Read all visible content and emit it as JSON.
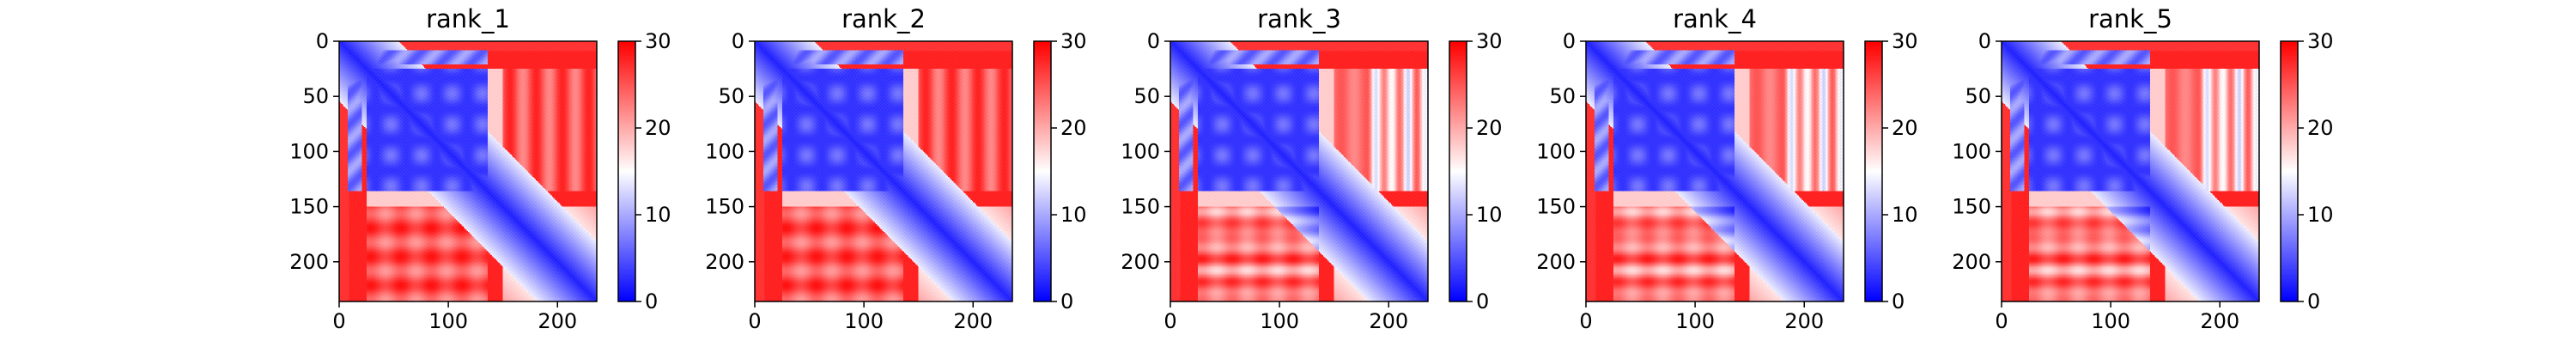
{
  "chart_data": [
    {
      "type": "heatmap",
      "title": "rank_1",
      "matrix_size": 236,
      "xlim": [
        0,
        236
      ],
      "ylim": [
        236,
        0
      ],
      "x_ticks": [
        0,
        100,
        200
      ],
      "y_ticks": [
        0,
        50,
        100,
        150,
        200
      ],
      "colorbar": {
        "min": 0,
        "max": 30,
        "ticks": [
          0,
          10,
          20,
          30
        ],
        "colormap": "bwr"
      },
      "variant": 0
    },
    {
      "type": "heatmap",
      "title": "rank_2",
      "matrix_size": 236,
      "xlim": [
        0,
        236
      ],
      "ylim": [
        236,
        0
      ],
      "x_ticks": [
        0,
        100,
        200
      ],
      "y_ticks": [
        0,
        50,
        100,
        150,
        200
      ],
      "colorbar": {
        "min": 0,
        "max": 30,
        "ticks": [
          0,
          10,
          20,
          30
        ],
        "colormap": "bwr"
      },
      "variant": 1
    },
    {
      "type": "heatmap",
      "title": "rank_3",
      "matrix_size": 236,
      "xlim": [
        0,
        236
      ],
      "ylim": [
        236,
        0
      ],
      "x_ticks": [
        0,
        100,
        200
      ],
      "y_ticks": [
        0,
        50,
        100,
        150,
        200
      ],
      "colorbar": {
        "min": 0,
        "max": 30,
        "ticks": [
          0,
          10,
          20,
          30
        ],
        "colormap": "bwr"
      },
      "variant": 2
    },
    {
      "type": "heatmap",
      "title": "rank_4",
      "matrix_size": 236,
      "xlim": [
        0,
        236
      ],
      "ylim": [
        236,
        0
      ],
      "x_ticks": [
        0,
        100,
        200
      ],
      "y_ticks": [
        0,
        50,
        100,
        150,
        200
      ],
      "colorbar": {
        "min": 0,
        "max": 30,
        "ticks": [
          0,
          10,
          20,
          30
        ],
        "colormap": "bwr"
      },
      "variant": 3
    },
    {
      "type": "heatmap",
      "title": "rank_5",
      "matrix_size": 236,
      "xlim": [
        0,
        236
      ],
      "ylim": [
        236,
        0
      ],
      "x_ticks": [
        0,
        100,
        200
      ],
      "y_ticks": [
        0,
        50,
        100,
        150,
        200
      ],
      "colorbar": {
        "min": 0,
        "max": 30,
        "ticks": [
          0,
          10,
          20,
          30
        ],
        "colormap": "bwr"
      },
      "variant": 4
    }
  ],
  "colors": {
    "low": "#0000ff",
    "mid": "#ffffff",
    "high": "#ff0000"
  }
}
